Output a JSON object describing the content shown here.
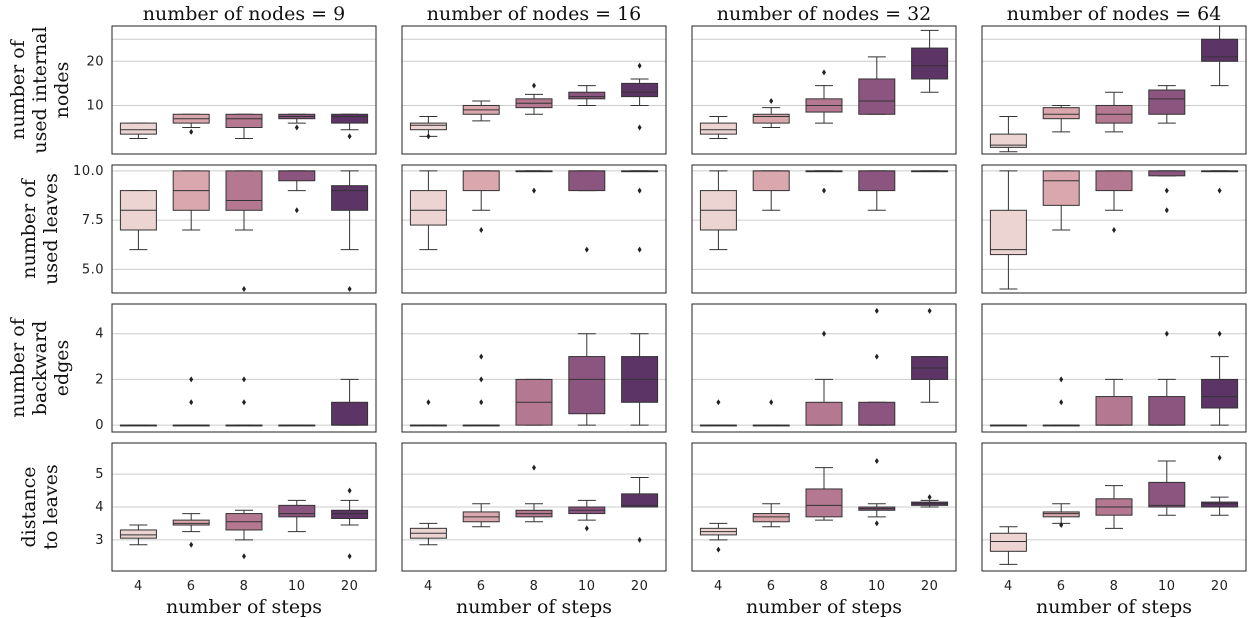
{
  "chart_data": {
    "type": "box",
    "columns": [
      "number of nodes = 9",
      "number of nodes = 16",
      "number of nodes = 32",
      "number of nodes = 64"
    ],
    "x_categories": [
      "4",
      "6",
      "8",
      "10",
      "20"
    ],
    "xlabel": "number of steps",
    "colors": [
      "#ebd4d2",
      "#d9a7ad",
      "#b47990",
      "#8c5580",
      "#5c3566"
    ],
    "rows": [
      {
        "ylabel": [
          "number of",
          "used internal",
          "nodes"
        ],
        "ylim": [
          -1,
          28
        ],
        "yticks": [
          10,
          20
        ],
        "grid": [
          10,
          20,
          25
        ],
        "panels": [
          [
            {
              "q1": 3.5,
              "med": 4.5,
              "q3": 6,
              "lo": 2.5,
              "hi": 6,
              "out": []
            },
            {
              "q1": 6,
              "med": 7,
              "q3": 8,
              "lo": 5,
              "hi": 8,
              "out": [
                4
              ]
            },
            {
              "q1": 5,
              "med": 7,
              "q3": 8,
              "lo": 2.5,
              "hi": 8,
              "out": []
            },
            {
              "q1": 7,
              "med": 7.5,
              "q3": 8,
              "lo": 6,
              "hi": 8,
              "out": [
                5
              ]
            },
            {
              "q1": 6,
              "med": 7.5,
              "q3": 8,
              "lo": 4.5,
              "hi": 8,
              "out": [
                3
              ]
            }
          ],
          [
            {
              "q1": 4.5,
              "med": 5.5,
              "q3": 6,
              "lo": 3,
              "hi": 7.5,
              "out": [
                3
              ]
            },
            {
              "q1": 8,
              "med": 9,
              "q3": 10,
              "lo": 6.5,
              "hi": 11,
              "out": []
            },
            {
              "q1": 9.5,
              "med": 10.5,
              "q3": 11.5,
              "lo": 8,
              "hi": 12.5,
              "out": [
                14.5
              ]
            },
            {
              "q1": 11.5,
              "med": 12,
              "q3": 13,
              "lo": 10,
              "hi": 14.5,
              "out": []
            },
            {
              "q1": 12,
              "med": 13,
              "q3": 15,
              "lo": 10,
              "hi": 16,
              "out": [
                19,
                5
              ]
            }
          ],
          [
            {
              "q1": 3.5,
              "med": 4.5,
              "q3": 6,
              "lo": 2.5,
              "hi": 7.5,
              "out": []
            },
            {
              "q1": 6,
              "med": 7.5,
              "q3": 8,
              "lo": 5,
              "hi": 9.5,
              "out": [
                11
              ]
            },
            {
              "q1": 8.5,
              "med": 10,
              "q3": 11.5,
              "lo": 6,
              "hi": 14.5,
              "out": [
                17.5
              ]
            },
            {
              "q1": 8,
              "med": 11,
              "q3": 16,
              "lo": 8,
              "hi": 21,
              "out": []
            },
            {
              "q1": 16,
              "med": 19,
              "q3": 23,
              "lo": 13,
              "hi": 27,
              "out": []
            }
          ],
          [
            {
              "q1": 0.5,
              "med": 1,
              "q3": 3.5,
              "lo": -0.5,
              "hi": 7.5,
              "out": []
            },
            {
              "q1": 7,
              "med": 8,
              "q3": 9.5,
              "lo": 4,
              "hi": 10,
              "out": []
            },
            {
              "q1": 6,
              "med": 8,
              "q3": 10,
              "lo": 4,
              "hi": 13,
              "out": []
            },
            {
              "q1": 8,
              "med": 11.5,
              "q3": 13.5,
              "lo": 6,
              "hi": 14.5,
              "out": []
            },
            {
              "q1": 20,
              "med": 21,
              "q3": 25,
              "lo": 14.5,
              "hi": 29,
              "out": []
            }
          ]
        ]
      },
      {
        "ylabel": [
          "number of",
          "used leaves"
        ],
        "ylim": [
          3.8,
          10.3
        ],
        "yticks": [
          5.0,
          7.5,
          10.0
        ],
        "grid": [
          5.0,
          7.5,
          10.0
        ],
        "panels": [
          [
            {
              "q1": 7,
              "med": 8,
              "q3": 9,
              "lo": 6,
              "hi": 9,
              "out": []
            },
            {
              "q1": 8,
              "med": 9,
              "q3": 10,
              "lo": 7,
              "hi": 10,
              "out": []
            },
            {
              "q1": 8,
              "med": 8.5,
              "q3": 10,
              "lo": 7,
              "hi": 10,
              "out": [
                4
              ]
            },
            {
              "q1": 9.5,
              "med": 10,
              "q3": 10,
              "lo": 9,
              "hi": 10,
              "out": [
                8
              ]
            },
            {
              "q1": 8,
              "med": 9,
              "q3": 9.25,
              "lo": 6,
              "hi": 10,
              "out": [
                4
              ]
            }
          ],
          [
            {
              "q1": 7.25,
              "med": 8,
              "q3": 9,
              "lo": 6,
              "hi": 10,
              "out": []
            },
            {
              "q1": 9,
              "med": 10,
              "q3": 10,
              "lo": 8,
              "hi": 10,
              "out": [
                7
              ]
            },
            {
              "q1": 10,
              "med": 10,
              "q3": 10,
              "lo": 10,
              "hi": 10,
              "out": [
                9
              ]
            },
            {
              "q1": 9,
              "med": 10,
              "q3": 10,
              "lo": 9,
              "hi": 10,
              "out": [
                6
              ]
            },
            {
              "q1": 10,
              "med": 10,
              "q3": 10,
              "lo": 10,
              "hi": 10,
              "out": [
                9,
                6
              ]
            }
          ],
          [
            {
              "q1": 7,
              "med": 8,
              "q3": 9,
              "lo": 6,
              "hi": 10,
              "out": []
            },
            {
              "q1": 9,
              "med": 10,
              "q3": 10,
              "lo": 8,
              "hi": 10,
              "out": []
            },
            {
              "q1": 10,
              "med": 10,
              "q3": 10,
              "lo": 10,
              "hi": 10,
              "out": [
                9
              ]
            },
            {
              "q1": 9,
              "med": 10,
              "q3": 10,
              "lo": 8,
              "hi": 10,
              "out": []
            },
            {
              "q1": 10,
              "med": 10,
              "q3": 10,
              "lo": 10,
              "hi": 10,
              "out": []
            }
          ],
          [
            {
              "q1": 5.75,
              "med": 6,
              "q3": 8,
              "lo": 4,
              "hi": 10,
              "out": []
            },
            {
              "q1": 8.25,
              "med": 9.5,
              "q3": 10,
              "lo": 7,
              "hi": 10,
              "out": []
            },
            {
              "q1": 9,
              "med": 10,
              "q3": 10,
              "lo": 8,
              "hi": 10,
              "out": [
                7
              ]
            },
            {
              "q1": 9.75,
              "med": 10,
              "q3": 10,
              "lo": 9.75,
              "hi": 10,
              "out": [
                9,
                8
              ]
            },
            {
              "q1": 10,
              "med": 10,
              "q3": 10,
              "lo": 10,
              "hi": 10,
              "out": [
                9
              ]
            }
          ]
        ]
      },
      {
        "ylabel": [
          "number of",
          "backward",
          "edges"
        ],
        "ylim": [
          -0.3,
          5.3
        ],
        "yticks": [
          0,
          2,
          4
        ],
        "grid": [
          0,
          2,
          4
        ],
        "panels": [
          [
            {
              "q1": 0,
              "med": 0,
              "q3": 0,
              "lo": 0,
              "hi": 0,
              "out": []
            },
            {
              "q1": 0,
              "med": 0,
              "q3": 0,
              "lo": 0,
              "hi": 0,
              "out": [
                1,
                2
              ]
            },
            {
              "q1": 0,
              "med": 0,
              "q3": 0,
              "lo": 0,
              "hi": 0,
              "out": [
                1,
                2
              ]
            },
            {
              "q1": 0,
              "med": 0,
              "q3": 0,
              "lo": 0,
              "hi": 0,
              "out": []
            },
            {
              "q1": 0,
              "med": 0,
              "q3": 1,
              "lo": 0,
              "hi": 2,
              "out": []
            }
          ],
          [
            {
              "q1": 0,
              "med": 0,
              "q3": 0,
              "lo": 0,
              "hi": 0,
              "out": [
                1
              ]
            },
            {
              "q1": 0,
              "med": 0,
              "q3": 0,
              "lo": 0,
              "hi": 0,
              "out": [
                1,
                2,
                3
              ]
            },
            {
              "q1": 0,
              "med": 1,
              "q3": 2,
              "lo": 0,
              "hi": 2,
              "out": []
            },
            {
              "q1": 0.5,
              "med": 2,
              "q3": 3,
              "lo": 0,
              "hi": 4,
              "out": []
            },
            {
              "q1": 1,
              "med": 2,
              "q3": 3,
              "lo": 0,
              "hi": 4,
              "out": []
            }
          ],
          [
            {
              "q1": 0,
              "med": 0,
              "q3": 0,
              "lo": 0,
              "hi": 0,
              "out": [
                1
              ]
            },
            {
              "q1": 0,
              "med": 0,
              "q3": 0,
              "lo": 0,
              "hi": 0,
              "out": [
                1
              ]
            },
            {
              "q1": 0,
              "med": 0,
              "q3": 1,
              "lo": 0,
              "hi": 2,
              "out": [
                4
              ]
            },
            {
              "q1": 0,
              "med": 0,
              "q3": 1,
              "lo": 0,
              "hi": 1,
              "out": [
                3,
                5
              ]
            },
            {
              "q1": 2,
              "med": 2.5,
              "q3": 3,
              "lo": 1,
              "hi": 3,
              "out": [
                5
              ]
            }
          ],
          [
            {
              "q1": 0,
              "med": 0,
              "q3": 0,
              "lo": 0,
              "hi": 0,
              "out": []
            },
            {
              "q1": 0,
              "med": 0,
              "q3": 0,
              "lo": 0,
              "hi": 0,
              "out": [
                1,
                2
              ]
            },
            {
              "q1": 0,
              "med": 0,
              "q3": 1.25,
              "lo": 0,
              "hi": 2,
              "out": []
            },
            {
              "q1": 0,
              "med": 0,
              "q3": 1.25,
              "lo": 0,
              "hi": 2,
              "out": [
                4
              ]
            },
            {
              "q1": 0.75,
              "med": 1.25,
              "q3": 2,
              "lo": 0,
              "hi": 3,
              "out": [
                4
              ]
            }
          ]
        ]
      },
      {
        "ylabel": [
          "distance",
          "to leaves"
        ],
        "ylim": [
          2.05,
          5.95
        ],
        "yticks": [
          3,
          4,
          5
        ],
        "grid": [
          3,
          4,
          5
        ],
        "panels": [
          [
            {
              "q1": 3.05,
              "med": 3.15,
              "q3": 3.3,
              "lo": 2.85,
              "hi": 3.45,
              "out": []
            },
            {
              "q1": 3.45,
              "med": 3.5,
              "q3": 3.6,
              "lo": 3.25,
              "hi": 3.8,
              "out": [
                2.85
              ]
            },
            {
              "q1": 3.3,
              "med": 3.55,
              "q3": 3.8,
              "lo": 3.0,
              "hi": 3.9,
              "out": [
                2.5
              ]
            },
            {
              "q1": 3.7,
              "med": 3.8,
              "q3": 4.05,
              "lo": 3.25,
              "hi": 4.2,
              "out": []
            },
            {
              "q1": 3.65,
              "med": 3.8,
              "q3": 3.9,
              "lo": 3.45,
              "hi": 4.2,
              "out": [
                4.5,
                2.5
              ]
            }
          ],
          [
            {
              "q1": 3.05,
              "med": 3.2,
              "q3": 3.35,
              "lo": 2.85,
              "hi": 3.5,
              "out": []
            },
            {
              "q1": 3.55,
              "med": 3.7,
              "q3": 3.85,
              "lo": 3.4,
              "hi": 4.1,
              "out": []
            },
            {
              "q1": 3.7,
              "med": 3.8,
              "q3": 3.9,
              "lo": 3.55,
              "hi": 4.1,
              "out": [
                5.2
              ]
            },
            {
              "q1": 3.8,
              "med": 3.9,
              "q3": 4.0,
              "lo": 3.6,
              "hi": 4.2,
              "out": [
                3.35
              ]
            },
            {
              "q1": 4.0,
              "med": 4.05,
              "q3": 4.4,
              "lo": 4.0,
              "hi": 4.9,
              "out": [
                3.0
              ]
            }
          ],
          [
            {
              "q1": 3.15,
              "med": 3.25,
              "q3": 3.35,
              "lo": 3.0,
              "hi": 3.5,
              "out": [
                2.7
              ]
            },
            {
              "q1": 3.55,
              "med": 3.7,
              "q3": 3.8,
              "lo": 3.4,
              "hi": 4.1,
              "out": []
            },
            {
              "q1": 3.7,
              "med": 4.05,
              "q3": 4.55,
              "lo": 3.6,
              "hi": 5.2,
              "out": []
            },
            {
              "q1": 3.9,
              "med": 3.95,
              "q3": 4.0,
              "lo": 3.7,
              "hi": 4.1,
              "out": [
                5.4,
                3.5
              ]
            },
            {
              "q1": 4.05,
              "med": 4.1,
              "q3": 4.15,
              "lo": 4.0,
              "hi": 4.2,
              "out": [
                4.3
              ]
            }
          ],
          [
            {
              "q1": 2.65,
              "med": 2.95,
              "q3": 3.2,
              "lo": 2.25,
              "hi": 3.4,
              "out": []
            },
            {
              "q1": 3.7,
              "med": 3.8,
              "q3": 3.85,
              "lo": 3.5,
              "hi": 4.1,
              "out": [
                3.45
              ]
            },
            {
              "q1": 3.75,
              "med": 4.0,
              "q3": 4.25,
              "lo": 3.35,
              "hi": 4.65,
              "out": []
            },
            {
              "q1": 4.0,
              "med": 4.05,
              "q3": 4.75,
              "lo": 3.75,
              "hi": 5.4,
              "out": []
            },
            {
              "q1": 4.0,
              "med": 4.1,
              "q3": 4.15,
              "lo": 3.75,
              "hi": 4.3,
              "out": [
                5.5
              ]
            }
          ]
        ]
      }
    ]
  }
}
